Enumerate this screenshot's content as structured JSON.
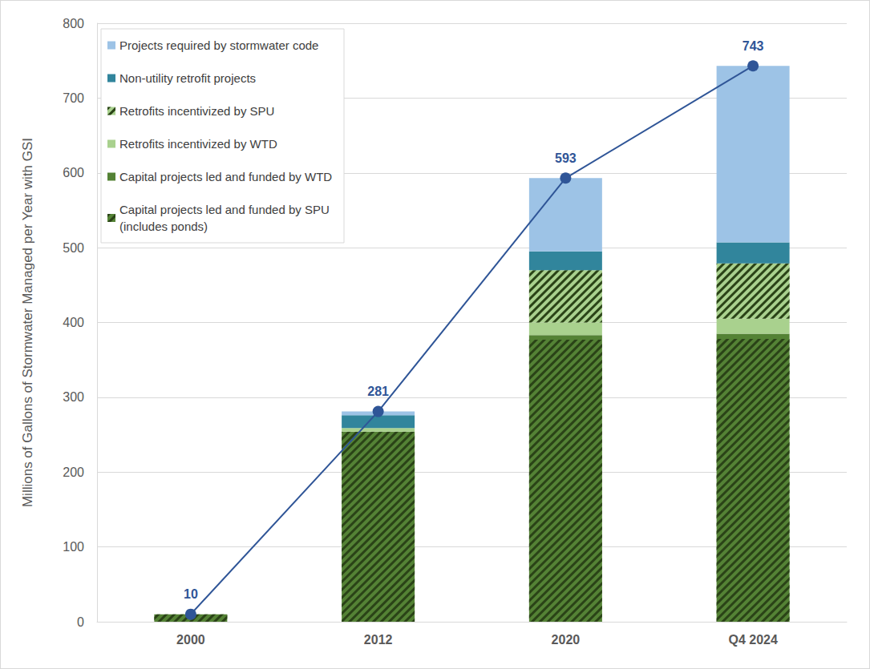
{
  "chart_data": {
    "type": "bar",
    "stacked": true,
    "categories": [
      "2000",
      "2012",
      "2020",
      "Q4 2024"
    ],
    "y_label": "Millions of Gallons of Stormwater Managed per Year with GSI",
    "ylim": [
      0,
      800
    ],
    "yticks": [
      0,
      100,
      200,
      300,
      400,
      500,
      600,
      700,
      800
    ],
    "grid": true,
    "legend": "upper left",
    "series": [
      {
        "name": "Capital projects led and funded by SPU (includes ponds)",
        "color": "#548235",
        "marker": "hatch",
        "values": [
          10,
          254,
          377,
          378
        ]
      },
      {
        "name": "Capital projects led and funded by WTD",
        "color": "#548235",
        "values": [
          0,
          0,
          6,
          7
        ]
      },
      {
        "name": "Retrofits incentivized by WTD",
        "color": "#a9d18e",
        "values": [
          0,
          5,
          17,
          20
        ]
      },
      {
        "name": "Retrofits incentivized by SPU",
        "color": "#a9d18e",
        "marker": "hatch",
        "values": [
          0,
          0,
          70,
          74
        ]
      },
      {
        "name": "Non-utility retrofit projects",
        "color": "#31859c",
        "values": [
          0,
          17,
          25,
          28
        ]
      },
      {
        "name": "Projects required by stormwater code",
        "color": "#9dc3e6",
        "values": [
          0,
          5,
          98,
          236
        ]
      },
      {
        "type": "line",
        "color": "#2f5597",
        "marker": "circle",
        "data_labels": true,
        "values": [
          10,
          281,
          593,
          743
        ]
      }
    ]
  }
}
